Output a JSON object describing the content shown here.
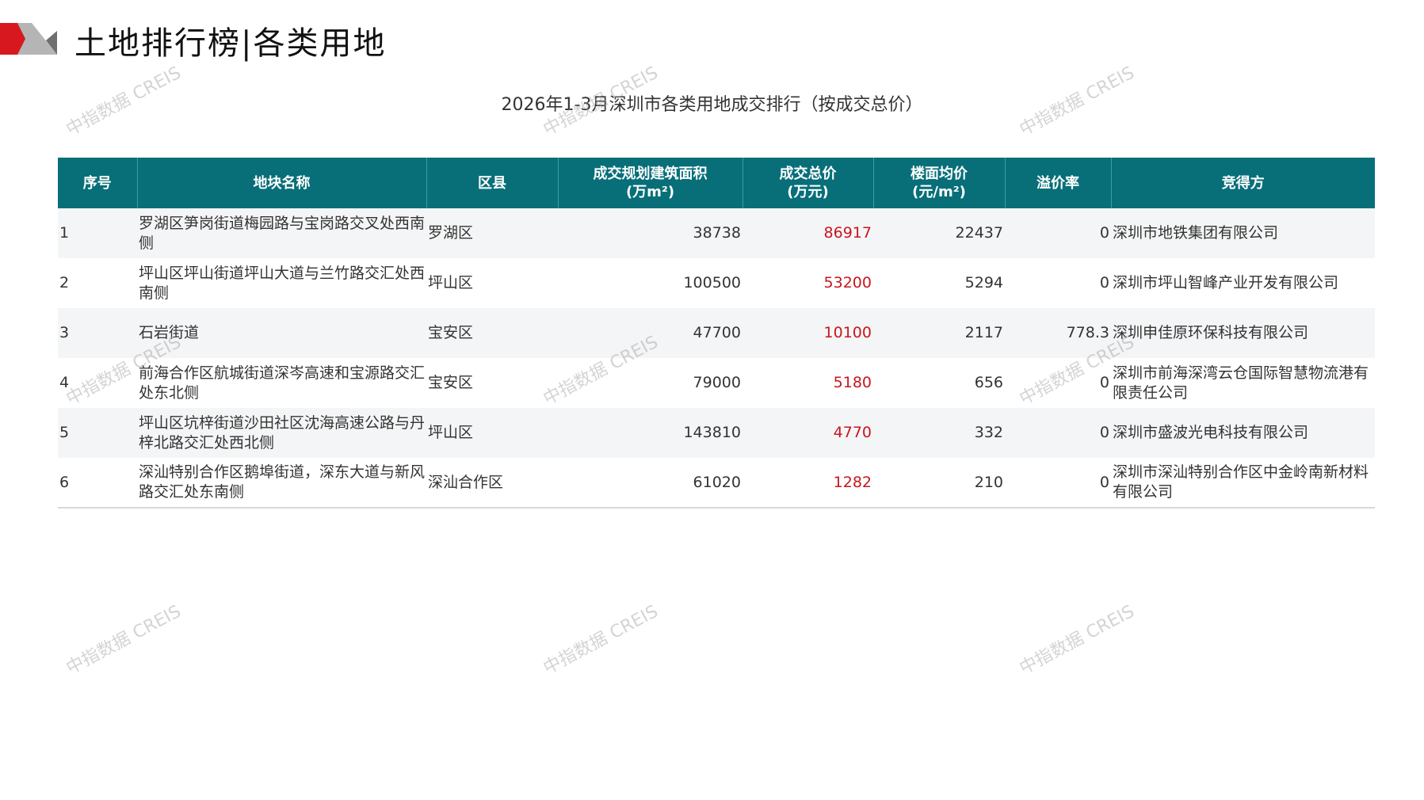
{
  "header": {
    "title": "土地排行榜|各类用地"
  },
  "subtitle": "2026年1-3月深圳市各类用地成交排行（按成交总价）",
  "colors": {
    "header_bg": "#086f79",
    "price_red": "#c8161d",
    "logo_red": "#d7191f",
    "logo_gray": "#b5b5b5"
  },
  "table": {
    "headers": [
      "序号",
      "地块名称",
      "区县",
      "成交规划建筑面积\n(万m²)",
      "成交总价\n(万元)",
      "楼面均价\n(元/m²)",
      "溢价率",
      "竞得方"
    ],
    "rows": [
      [
        "1",
        "罗湖区笋岗街道梅园路与宝岗路交叉处西南侧",
        "罗湖区",
        "38738",
        "86917",
        "22437",
        "0",
        "深圳市地铁集团有限公司"
      ],
      [
        "2",
        "坪山区坪山街道坪山大道与兰竹路交汇处西南侧",
        "坪山区",
        "100500",
        "53200",
        "5294",
        "0",
        "深圳市坪山智峰产业开发有限公司"
      ],
      [
        "3",
        "石岩街道",
        "宝安区",
        "47700",
        "10100",
        "2117",
        "778.3",
        "深圳申佳原环保科技有限公司"
      ],
      [
        "4",
        "前海合作区航城街道深岑高速和宝源路交汇处东北侧",
        "宝安区",
        "79000",
        "5180",
        "656",
        "0",
        "深圳市前海深湾云仓国际智慧物流港有限责任公司"
      ],
      [
        "5",
        "坪山区坑梓街道沙田社区沈海高速公路与丹梓北路交汇处西北侧",
        "坪山区",
        "143810",
        "4770",
        "332",
        "0",
        "深圳市盛波光电科技有限公司"
      ],
      [
        "6",
        "深汕特别合作区鹅埠街道，深东大道与新风路交汇处东南侧",
        "深汕合作区",
        "61020",
        "1282",
        "210",
        "0",
        "深圳市深汕特别合作区中金岭南新材料有限公司"
      ]
    ]
  },
  "watermark": "中指数据 CREIS"
}
